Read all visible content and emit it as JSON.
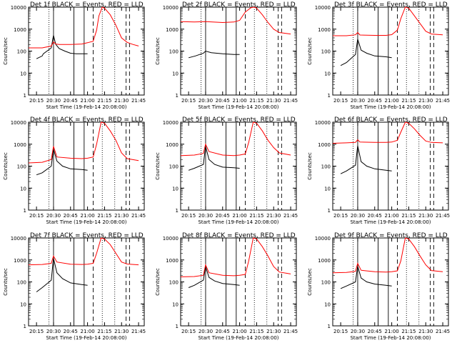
{
  "figure": {
    "xlabel": "Start Time (19-Feb-14 20:08:00)",
    "ylabel": "Counts/sec",
    "x_ticks": [
      "20:15",
      "20:30",
      "20:45",
      "21:00",
      "21:15",
      "21:30",
      "21:45"
    ],
    "y_ticks": [
      "1",
      "10",
      "100",
      "1000",
      "10000"
    ],
    "colors": {
      "events": "#000000",
      "lld": "#ff0000",
      "background": "#ffffff"
    }
  },
  "chart_data": [
    {
      "type": "line",
      "title": "Det 1f BLACK = Events, RED = LLD",
      "y_scale": "log",
      "ylim": [
        1,
        10000
      ],
      "series": [
        {
          "color": "#000000",
          "x": [
            "20:15",
            "20:20",
            "20:21",
            "20:28",
            "20:30",
            "20:32",
            "20:35",
            "20:40",
            "20:45",
            "20:50",
            "20:55",
            "21:00"
          ],
          "values": [
            45,
            60,
            75,
            140,
            520,
            200,
            130,
            100,
            80,
            75,
            75,
            75
          ]
        },
        {
          "color": "#ff0000",
          "x": [
            "20:08",
            "20:20",
            "20:28",
            "20:30",
            "20:32",
            "20:35",
            "20:45",
            "20:55",
            "21:00",
            "21:05",
            "21:08",
            "21:10",
            "21:13",
            "21:15",
            "21:20",
            "21:25",
            "21:30",
            "21:35",
            "21:40",
            "21:45"
          ],
          "values": [
            140,
            140,
            170,
            260,
            210,
            200,
            200,
            210,
            240,
            280,
            900,
            4000,
            10000,
            9000,
            4500,
            1500,
            400,
            250,
            200,
            170
          ]
        }
      ]
    },
    {
      "type": "line",
      "title": "Det 2f BLACK = Events, RED = LLD",
      "y_scale": "log",
      "ylim": [
        1,
        10000
      ],
      "series": [
        {
          "color": "#000000",
          "x": [
            "20:15",
            "20:21",
            "20:28",
            "20:30",
            "20:35",
            "20:45",
            "20:55",
            "21:00"
          ],
          "values": [
            50,
            60,
            80,
            100,
            85,
            75,
            70,
            70
          ]
        },
        {
          "color": "#ff0000",
          "x": [
            "20:08",
            "20:20",
            "20:30",
            "20:45",
            "20:55",
            "21:00",
            "21:05",
            "21:10",
            "21:13",
            "21:15",
            "21:20",
            "21:25",
            "21:30",
            "21:35",
            "21:45"
          ],
          "values": [
            2200,
            2100,
            2200,
            2000,
            2100,
            2500,
            6000,
            9500,
            10000,
            9000,
            4500,
            2000,
            1000,
            700,
            600
          ]
        }
      ]
    },
    {
      "type": "line",
      "title": "Det 3f BLACK = Events, RED = LLD",
      "y_scale": "log",
      "ylim": [
        1,
        10000
      ],
      "series": [
        {
          "color": "#000000",
          "x": [
            "20:15",
            "20:20",
            "20:28",
            "20:30",
            "20:33",
            "20:38",
            "20:45",
            "20:55",
            "21:00"
          ],
          "values": [
            22,
            30,
            70,
            350,
            110,
            80,
            60,
            55,
            50
          ]
        },
        {
          "color": "#ff0000",
          "x": [
            "20:08",
            "20:20",
            "20:28",
            "20:30",
            "20:32",
            "20:45",
            "20:55",
            "21:00",
            "21:05",
            "21:08",
            "21:12",
            "21:15",
            "21:20",
            "21:25",
            "21:30",
            "21:35",
            "21:45"
          ],
          "values": [
            500,
            500,
            550,
            700,
            540,
            520,
            520,
            560,
            900,
            3000,
            10000,
            9000,
            4000,
            1800,
            800,
            600,
            550
          ]
        }
      ]
    },
    {
      "type": "line",
      "title": "Det 4f BLACK = Events, RED = LLD",
      "y_scale": "log",
      "ylim": [
        1,
        10000
      ],
      "series": [
        {
          "color": "#000000",
          "x": [
            "20:15",
            "20:20",
            "20:28",
            "20:30",
            "20:33",
            "20:38",
            "20:45",
            "20:55",
            "21:00"
          ],
          "values": [
            40,
            50,
            100,
            600,
            170,
            100,
            75,
            70,
            65
          ]
        },
        {
          "color": "#ff0000",
          "x": [
            "20:08",
            "20:20",
            "20:28",
            "20:30",
            "20:33",
            "20:45",
            "20:55",
            "21:00",
            "21:05",
            "21:08",
            "21:12",
            "21:15",
            "21:20",
            "21:25",
            "21:30",
            "21:35",
            "21:45"
          ],
          "values": [
            140,
            150,
            200,
            800,
            260,
            230,
            220,
            230,
            260,
            1000,
            10000,
            9000,
            4000,
            1500,
            400,
            220,
            180
          ]
        }
      ]
    },
    {
      "type": "line",
      "title": "Det 5f BLACK = Events, RED = LLD",
      "y_scale": "log",
      "ylim": [
        1,
        10000
      ],
      "series": [
        {
          "color": "#000000",
          "x": [
            "20:15",
            "20:20",
            "20:28",
            "20:30",
            "20:33",
            "20:38",
            "20:45",
            "20:55",
            "21:00"
          ],
          "values": [
            65,
            80,
            120,
            800,
            200,
            120,
            90,
            85,
            80
          ]
        },
        {
          "color": "#ff0000",
          "x": [
            "20:08",
            "20:20",
            "20:28",
            "20:30",
            "20:33",
            "20:45",
            "20:55",
            "21:00",
            "21:05",
            "21:08",
            "21:12",
            "21:15",
            "21:20",
            "21:25",
            "21:30",
            "21:35",
            "21:45"
          ],
          "values": [
            300,
            320,
            380,
            1000,
            460,
            320,
            300,
            320,
            360,
            1200,
            10000,
            9000,
            4000,
            1500,
            700,
            400,
            320
          ]
        }
      ]
    },
    {
      "type": "line",
      "title": "Det 6f BLACK = Events, RED = LLD",
      "y_scale": "log",
      "ylim": [
        1,
        10000
      ],
      "series": [
        {
          "color": "#000000",
          "x": [
            "20:15",
            "20:20",
            "20:28",
            "20:30",
            "20:33",
            "20:38",
            "20:45",
            "20:55",
            "21:00"
          ],
          "values": [
            45,
            60,
            110,
            850,
            160,
            100,
            75,
            65,
            60
          ]
        },
        {
          "color": "#ff0000",
          "x": [
            "20:08",
            "20:20",
            "20:28",
            "20:30",
            "20:32",
            "20:45",
            "20:55",
            "21:00",
            "21:05",
            "21:08",
            "21:12",
            "21:15",
            "21:20",
            "21:25",
            "21:30",
            "21:35",
            "21:45"
          ],
          "values": [
            1100,
            1150,
            1200,
            1600,
            1250,
            1200,
            1200,
            1250,
            1500,
            3500,
            10000,
            9000,
            5000,
            2500,
            1400,
            1200,
            1150
          ]
        }
      ]
    },
    {
      "type": "line",
      "title": "Det 7f BLACK = Events, RED = LLD",
      "y_scale": "log",
      "ylim": [
        1,
        10000
      ],
      "series": [
        {
          "color": "#000000",
          "x": [
            "20:15",
            "20:20",
            "20:28",
            "20:30",
            "20:33",
            "20:38",
            "20:45",
            "20:55",
            "21:00"
          ],
          "values": [
            35,
            55,
            120,
            1200,
            260,
            140,
            90,
            75,
            70
          ]
        },
        {
          "color": "#ff0000",
          "x": [
            "20:08",
            "20:20",
            "20:28",
            "20:30",
            "20:33",
            "20:45",
            "20:55",
            "21:00",
            "21:05",
            "21:08",
            "21:12",
            "21:15",
            "21:20",
            "21:25",
            "21:30",
            "21:35",
            "21:45"
          ],
          "values": [
            600,
            620,
            700,
            1500,
            800,
            640,
            620,
            640,
            700,
            2000,
            10000,
            9000,
            5000,
            2000,
            800,
            650,
            600
          ]
        }
      ]
    },
    {
      "type": "line",
      "title": "Det 8f BLACK = Events, RED = LLD",
      "y_scale": "log",
      "ylim": [
        1,
        10000
      ],
      "series": [
        {
          "color": "#000000",
          "x": [
            "20:15",
            "20:20",
            "20:28",
            "20:30",
            "20:33",
            "20:38",
            "20:45",
            "20:55",
            "21:00"
          ],
          "values": [
            55,
            70,
            120,
            500,
            160,
            110,
            85,
            75,
            70
          ]
        },
        {
          "color": "#ff0000",
          "x": [
            "20:08",
            "20:20",
            "20:28",
            "20:30",
            "20:33",
            "20:45",
            "20:55",
            "21:00",
            "21:05",
            "21:08",
            "21:12",
            "21:15",
            "21:20",
            "21:25",
            "21:30",
            "21:35",
            "21:45"
          ],
          "values": [
            170,
            175,
            200,
            600,
            260,
            200,
            190,
            200,
            220,
            900,
            10000,
            9000,
            4000,
            1500,
            500,
            280,
            230
          ]
        }
      ]
    },
    {
      "type": "line",
      "title": "Det 9f BLACK = Events, RED = LLD",
      "y_scale": "log",
      "ylim": [
        1,
        10000
      ],
      "series": [
        {
          "color": "#000000",
          "x": [
            "20:15",
            "20:20",
            "20:28",
            "20:30",
            "20:33",
            "20:38",
            "20:45",
            "20:55",
            "21:00"
          ],
          "values": [
            50,
            65,
            100,
            520,
            150,
            100,
            80,
            70,
            65
          ]
        },
        {
          "color": "#ff0000",
          "x": [
            "20:08",
            "20:20",
            "20:28",
            "20:30",
            "20:33",
            "20:45",
            "20:55",
            "21:00",
            "21:05",
            "21:08",
            "21:12",
            "21:15",
            "21:20",
            "21:25",
            "21:30",
            "21:35",
            "21:45"
          ],
          "values": [
            260,
            270,
            300,
            700,
            340,
            290,
            280,
            290,
            320,
            900,
            10000,
            9000,
            4000,
            1500,
            600,
            330,
            290
          ]
        }
      ]
    }
  ]
}
